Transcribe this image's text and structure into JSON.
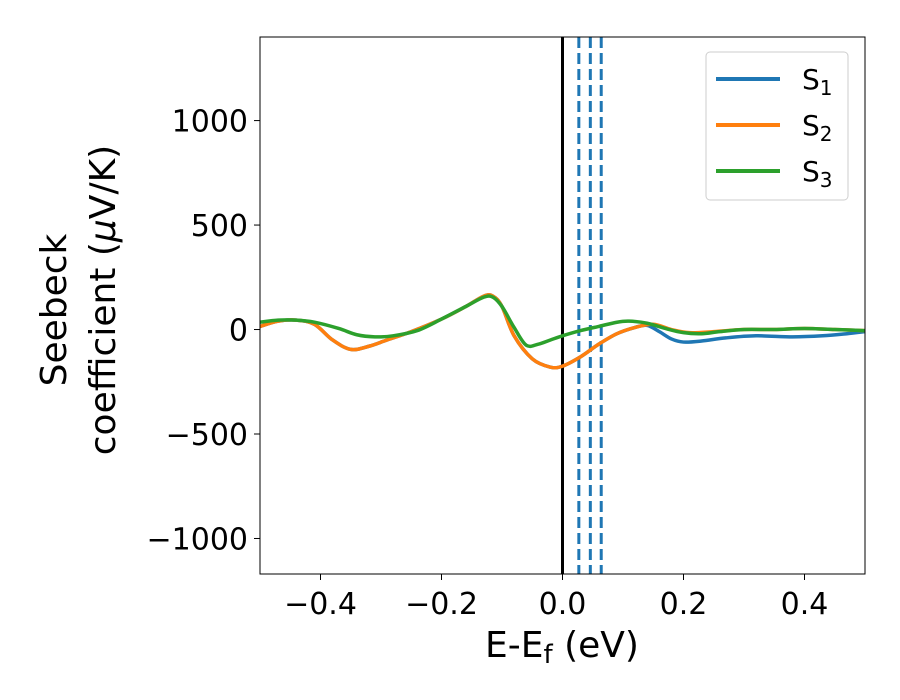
{
  "chart_data": {
    "type": "line",
    "title": "",
    "xlabel": "E-E",
    "xlabel_sub": "f",
    "xlabel_unit": " (eV)",
    "ylabel_line1": "Seebeck",
    "ylabel_line2": "coefficient  (",
    "ylabel_mu": "μ",
    "ylabel_unit": "V/K)",
    "xlim": [
      -0.5,
      0.5
    ],
    "ylim": [
      -1170,
      1400
    ],
    "xticks": [
      -0.4,
      -0.2,
      0.0,
      0.2,
      0.4
    ],
    "xtick_labels": [
      "−0.4",
      "−0.2",
      "0.0",
      "0.2",
      "0.4"
    ],
    "yticks": [
      -1000,
      -500,
      0,
      500,
      1000
    ],
    "ytick_labels": [
      "−1000",
      "−500",
      "0",
      "500",
      "1000"
    ],
    "legend_position": "top-right",
    "reference_lines": [
      {
        "x": 0.0,
        "style": "solid",
        "color": "#000000"
      },
      {
        "x": 0.027,
        "style": "dashed",
        "color": "#1f77b4"
      },
      {
        "x": 0.046,
        "style": "dashed",
        "color": "#1f77b4"
      },
      {
        "x": 0.064,
        "style": "dashed",
        "color": "#1f77b4"
      }
    ],
    "series": [
      {
        "name": "S",
        "sub": "1",
        "color": "#1f77b4",
        "points": [
          [
            -0.5,
            15
          ],
          [
            -0.47,
            40
          ],
          [
            -0.44,
            45
          ],
          [
            -0.41,
            25
          ],
          [
            -0.38,
            -50
          ],
          [
            -0.35,
            -95
          ],
          [
            -0.32,
            -80
          ],
          [
            -0.29,
            -50
          ],
          [
            -0.25,
            -10
          ],
          [
            -0.2,
            50
          ],
          [
            -0.16,
            110
          ],
          [
            -0.13,
            160
          ],
          [
            -0.115,
            160
          ],
          [
            -0.1,
            110
          ],
          [
            -0.08,
            -30
          ],
          [
            -0.05,
            -140
          ],
          [
            -0.02,
            -180
          ],
          [
            0.0,
            -175
          ],
          [
            0.03,
            -130
          ],
          [
            0.06,
            -70
          ],
          [
            0.09,
            -20
          ],
          [
            0.12,
            10
          ],
          [
            0.14,
            20
          ],
          [
            0.16,
            -10
          ],
          [
            0.18,
            -45
          ],
          [
            0.2,
            -60
          ],
          [
            0.23,
            -55
          ],
          [
            0.27,
            -40
          ],
          [
            0.32,
            -30
          ],
          [
            0.38,
            -35
          ],
          [
            0.43,
            -30
          ],
          [
            0.47,
            -20
          ],
          [
            0.5,
            -10
          ]
        ]
      },
      {
        "name": "S",
        "sub": "2",
        "color": "#ff7f0e",
        "points": [
          [
            -0.5,
            15
          ],
          [
            -0.47,
            40
          ],
          [
            -0.44,
            45
          ],
          [
            -0.41,
            25
          ],
          [
            -0.38,
            -50
          ],
          [
            -0.35,
            -95
          ],
          [
            -0.32,
            -80
          ],
          [
            -0.29,
            -50
          ],
          [
            -0.25,
            -10
          ],
          [
            -0.2,
            50
          ],
          [
            -0.16,
            110
          ],
          [
            -0.13,
            160
          ],
          [
            -0.115,
            160
          ],
          [
            -0.1,
            110
          ],
          [
            -0.08,
            -30
          ],
          [
            -0.05,
            -140
          ],
          [
            -0.02,
            -180
          ],
          [
            0.0,
            -175
          ],
          [
            0.03,
            -130
          ],
          [
            0.06,
            -70
          ],
          [
            0.09,
            -20
          ],
          [
            0.12,
            10
          ],
          [
            0.15,
            25
          ],
          [
            0.18,
            0
          ],
          [
            0.21,
            -15
          ],
          [
            0.25,
            -10
          ],
          [
            0.3,
            0
          ],
          [
            0.35,
            0
          ],
          [
            0.4,
            5
          ],
          [
            0.45,
            0
          ],
          [
            0.5,
            -5
          ]
        ]
      },
      {
        "name": "S",
        "sub": "3",
        "color": "#2ca02c",
        "points": [
          [
            -0.5,
            35
          ],
          [
            -0.47,
            45
          ],
          [
            -0.44,
            45
          ],
          [
            -0.41,
            35
          ],
          [
            -0.37,
            5
          ],
          [
            -0.34,
            -25
          ],
          [
            -0.31,
            -35
          ],
          [
            -0.28,
            -30
          ],
          [
            -0.24,
            -5
          ],
          [
            -0.2,
            50
          ],
          [
            -0.16,
            110
          ],
          [
            -0.13,
            155
          ],
          [
            -0.115,
            155
          ],
          [
            -0.1,
            110
          ],
          [
            -0.08,
            10
          ],
          [
            -0.06,
            -75
          ],
          [
            -0.04,
            -70
          ],
          [
            -0.02,
            -50
          ],
          [
            0.0,
            -30
          ],
          [
            0.03,
            -5
          ],
          [
            0.06,
            15
          ],
          [
            0.09,
            35
          ],
          [
            0.11,
            40
          ],
          [
            0.14,
            30
          ],
          [
            0.17,
            5
          ],
          [
            0.2,
            -15
          ],
          [
            0.23,
            -20
          ],
          [
            0.26,
            -10
          ],
          [
            0.3,
            0
          ],
          [
            0.35,
            0
          ],
          [
            0.4,
            5
          ],
          [
            0.45,
            0
          ],
          [
            0.5,
            -5
          ]
        ]
      }
    ]
  }
}
